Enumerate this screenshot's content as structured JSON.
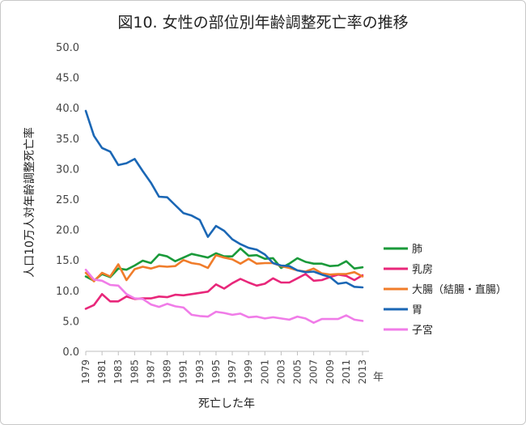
{
  "chart_data": {
    "type": "line",
    "title": "図10.  女性の部位別年齢調整死亡率の推移",
    "xlabel": "死亡した年",
    "ylabel": "人口10万人対年齢調整死亡率",
    "x_unit": "年",
    "ylim": [
      0,
      50
    ],
    "yticks": [
      "0.0",
      "5.0",
      "10.0",
      "15.0",
      "20.0",
      "25.0",
      "30.0",
      "35.0",
      "40.0",
      "45.0",
      "50.0"
    ],
    "x": [
      1979,
      1980,
      1981,
      1982,
      1983,
      1984,
      1985,
      1986,
      1987,
      1988,
      1989,
      1990,
      1991,
      1992,
      1993,
      1994,
      1995,
      1996,
      1997,
      1998,
      1999,
      2000,
      2001,
      2002,
      2003,
      2004,
      2005,
      2006,
      2007,
      2008,
      2009,
      2010,
      2011,
      2012,
      2013
    ],
    "xticks": [
      "1979",
      "1981",
      "1983",
      "1985",
      "1987",
      "1989",
      "1991",
      "1993",
      "1995",
      "1997",
      "1999",
      "2001",
      "2003",
      "2005",
      "2007",
      "2009",
      "2011",
      "2013"
    ],
    "grid": false,
    "legend_position": "right",
    "series": [
      {
        "name": "肺",
        "color": "#1a9a3a",
        "values": [
          12.3,
          11.6,
          12.7,
          12.2,
          13.6,
          13.4,
          14.1,
          14.9,
          14.5,
          15.9,
          15.6,
          14.8,
          15.4,
          16.0,
          15.7,
          15.4,
          16.1,
          15.6,
          15.6,
          16.9,
          15.7,
          15.8,
          15.2,
          15.3,
          13.7,
          14.4,
          15.3,
          14.7,
          14.4,
          14.4,
          14.0,
          14.1,
          14.8,
          13.6,
          13.8
        ]
      },
      {
        "name": "乳房",
        "color": "#e8277a",
        "values": [
          7.0,
          7.6,
          9.4,
          8.2,
          8.2,
          9.0,
          8.6,
          8.7,
          8.7,
          9.0,
          8.9,
          9.3,
          9.2,
          9.4,
          9.6,
          9.8,
          11.0,
          10.3,
          11.2,
          11.9,
          11.3,
          10.8,
          11.1,
          12.0,
          11.3,
          11.3,
          12.0,
          12.7,
          11.6,
          11.7,
          12.2,
          12.6,
          12.4,
          11.7,
          12.5
        ]
      },
      {
        "name": "大腸（結腸・直腸）",
        "color": "#f07c2a",
        "values": [
          12.9,
          11.5,
          12.9,
          12.3,
          14.3,
          11.7,
          13.5,
          13.9,
          13.6,
          14.0,
          13.9,
          14.0,
          15.0,
          14.5,
          14.3,
          13.7,
          15.8,
          15.4,
          15.1,
          14.4,
          15.2,
          14.4,
          14.5,
          14.5,
          14.0,
          13.7,
          13.3,
          13.1,
          13.6,
          12.8,
          12.6,
          12.7,
          12.7,
          13.0,
          12.3
        ]
      },
      {
        "name": "胃",
        "color": "#1b67b5",
        "values": [
          39.5,
          35.4,
          33.4,
          32.8,
          30.6,
          30.9,
          31.6,
          29.6,
          27.7,
          25.4,
          25.3,
          24.0,
          22.7,
          22.3,
          21.6,
          18.8,
          20.6,
          19.8,
          18.4,
          17.6,
          17.0,
          16.7,
          15.9,
          14.5,
          14.1,
          14.0,
          13.3,
          13.0,
          13.1,
          12.6,
          12.2,
          11.1,
          11.3,
          10.6,
          10.5
        ]
      },
      {
        "name": "子宮",
        "color": "#f07ce8",
        "values": [
          13.4,
          11.8,
          11.6,
          10.9,
          10.8,
          9.4,
          8.7,
          8.6,
          7.7,
          7.3,
          7.8,
          7.4,
          7.2,
          6.0,
          5.8,
          5.7,
          6.5,
          6.3,
          6.0,
          6.2,
          5.6,
          5.7,
          5.4,
          5.6,
          5.4,
          5.2,
          5.7,
          5.4,
          4.7,
          5.3,
          5.3,
          5.3,
          5.9,
          5.2,
          5.0
        ]
      }
    ]
  }
}
